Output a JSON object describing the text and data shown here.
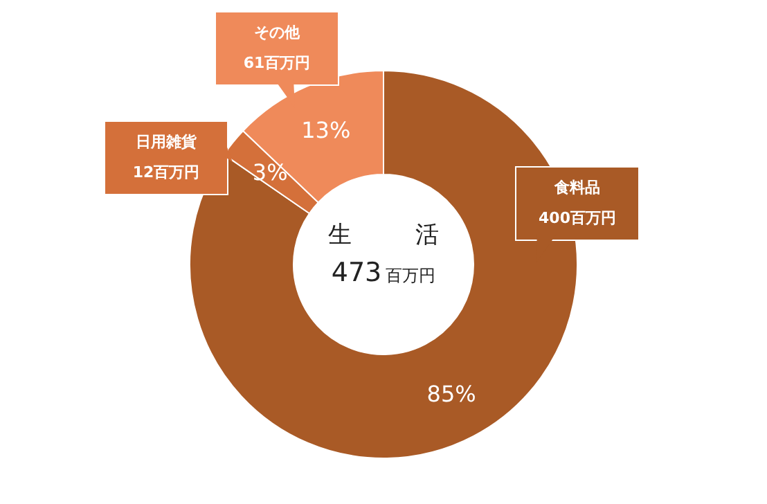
{
  "chart_data": {
    "type": "donut",
    "title": "生活",
    "subtitle": "473百万円",
    "categories": [
      "食料品",
      "日用雑貨",
      "その他"
    ],
    "values": [
      84.6,
      2.5,
      12.9
    ],
    "colors": [
      "#a95a26",
      "#d4703a",
      "#ef8a5a"
    ],
    "value_labels": [
      "85%",
      "3%",
      "13%"
    ],
    "annotations": [
      "400百万円",
      "12百万円",
      "61百万円"
    ]
  }
}
